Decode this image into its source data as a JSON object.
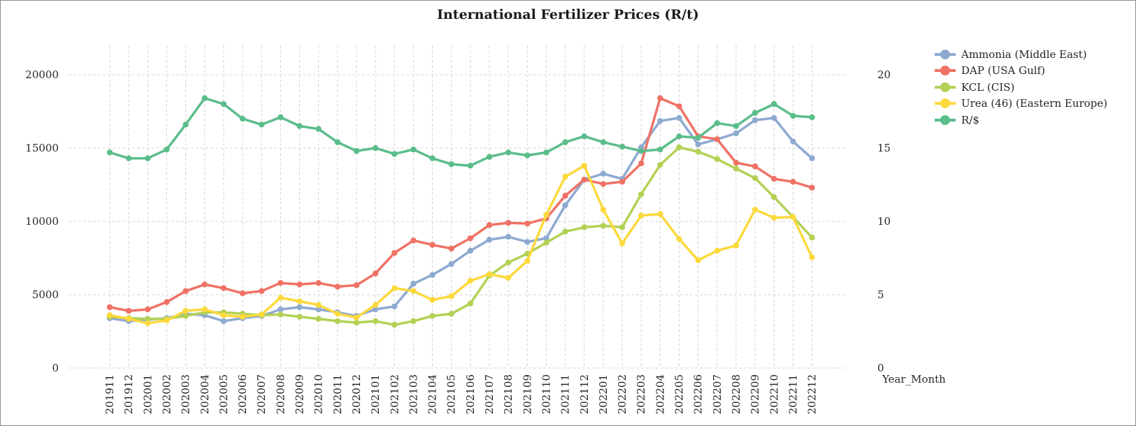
{
  "chart_data": {
    "type": "line",
    "title": "International Fertilizer Prices (R/t)",
    "xlabel": "Year_Month",
    "ylabel": "",
    "ylim": [
      0,
      22000
    ],
    "y2lim": [
      0,
      22
    ],
    "yticks": [
      0,
      5000,
      10000,
      15000,
      20000
    ],
    "y2ticks": [
      0,
      5,
      10,
      15,
      20
    ],
    "grid": true,
    "legend_position": "right",
    "categories": [
      "201911",
      "201912",
      "202001",
      "202002",
      "202003",
      "202004",
      "202005",
      "202006",
      "202007",
      "202008",
      "202009",
      "202010",
      "202011",
      "202012",
      "202101",
      "202102",
      "202103",
      "202104",
      "202105",
      "202106",
      "202107",
      "202108",
      "202109",
      "202110",
      "202111",
      "202112",
      "202201",
      "202202",
      "202203",
      "202204",
      "202205",
      "202206",
      "202207",
      "202208",
      "202209",
      "202210",
      "202211",
      "202212"
    ],
    "series": [
      {
        "name": "Ammonia (Middle East)",
        "axis": "left",
        "color": "#8eaad1",
        "values": [
          3400,
          3200,
          3300,
          3400,
          3700,
          3600,
          3200,
          3400,
          3550,
          4000,
          4150,
          4000,
          3800,
          3550,
          4000,
          4200,
          5750,
          6350,
          7100,
          8000,
          8750,
          8950,
          8600,
          8850,
          11100,
          12850,
          13250,
          12900,
          15050,
          16850,
          17050,
          15250,
          15600,
          16000,
          16900,
          17050,
          15450,
          14300
        ]
      },
      {
        "name": "DAP (USA Gulf)",
        "axis": "left",
        "color": "#f07266",
        "values": [
          4150,
          3900,
          4000,
          4500,
          5250,
          5700,
          5450,
          5100,
          5250,
          5800,
          5700,
          5800,
          5550,
          5650,
          6450,
          7850,
          8700,
          8400,
          8150,
          8850,
          9750,
          9900,
          9850,
          10200,
          11750,
          12850,
          12550,
          12700,
          13950,
          18400,
          17850,
          15800,
          15600,
          14000,
          13750,
          12900,
          12700,
          12300
        ]
      },
      {
        "name": "KCL (CIS)",
        "axis": "left",
        "color": "#b3d155",
        "values": [
          3500,
          3400,
          3350,
          3350,
          3550,
          3800,
          3800,
          3700,
          3600,
          3650,
          3500,
          3350,
          3200,
          3100,
          3200,
          2950,
          3200,
          3550,
          3700,
          4400,
          6300,
          7200,
          7800,
          8550,
          9300,
          9600,
          9700,
          9600,
          11850,
          13850,
          15050,
          14750,
          14250,
          13600,
          12950,
          11650,
          10300,
          8900
        ]
      },
      {
        "name": "Urea (46) (Eastern Europe)",
        "axis": "left",
        "color": "#fcd93c",
        "values": [
          3600,
          3350,
          3050,
          3250,
          3900,
          4000,
          3600,
          3500,
          3650,
          4800,
          4550,
          4300,
          3700,
          3450,
          4300,
          5450,
          5250,
          4650,
          4900,
          5950,
          6400,
          6150,
          7300,
          10450,
          13050,
          13800,
          10800,
          8500,
          10400,
          10500,
          8800,
          7350,
          8000,
          8350,
          10800,
          10250,
          10300,
          7550
        ]
      },
      {
        "name": "R/$",
        "axis": "right",
        "color": "#5bbd8a",
        "values": [
          14.7,
          14.3,
          14.3,
          14.9,
          16.6,
          18.4,
          18.0,
          17.0,
          16.6,
          17.1,
          16.5,
          16.3,
          15.4,
          14.8,
          15.0,
          14.6,
          14.9,
          14.3,
          13.9,
          13.8,
          14.4,
          14.7,
          14.5,
          14.7,
          15.4,
          15.8,
          15.4,
          15.1,
          14.8,
          14.9,
          15.8,
          15.7,
          16.7,
          16.5,
          17.4,
          18.0,
          17.2,
          17.1
        ]
      }
    ]
  }
}
